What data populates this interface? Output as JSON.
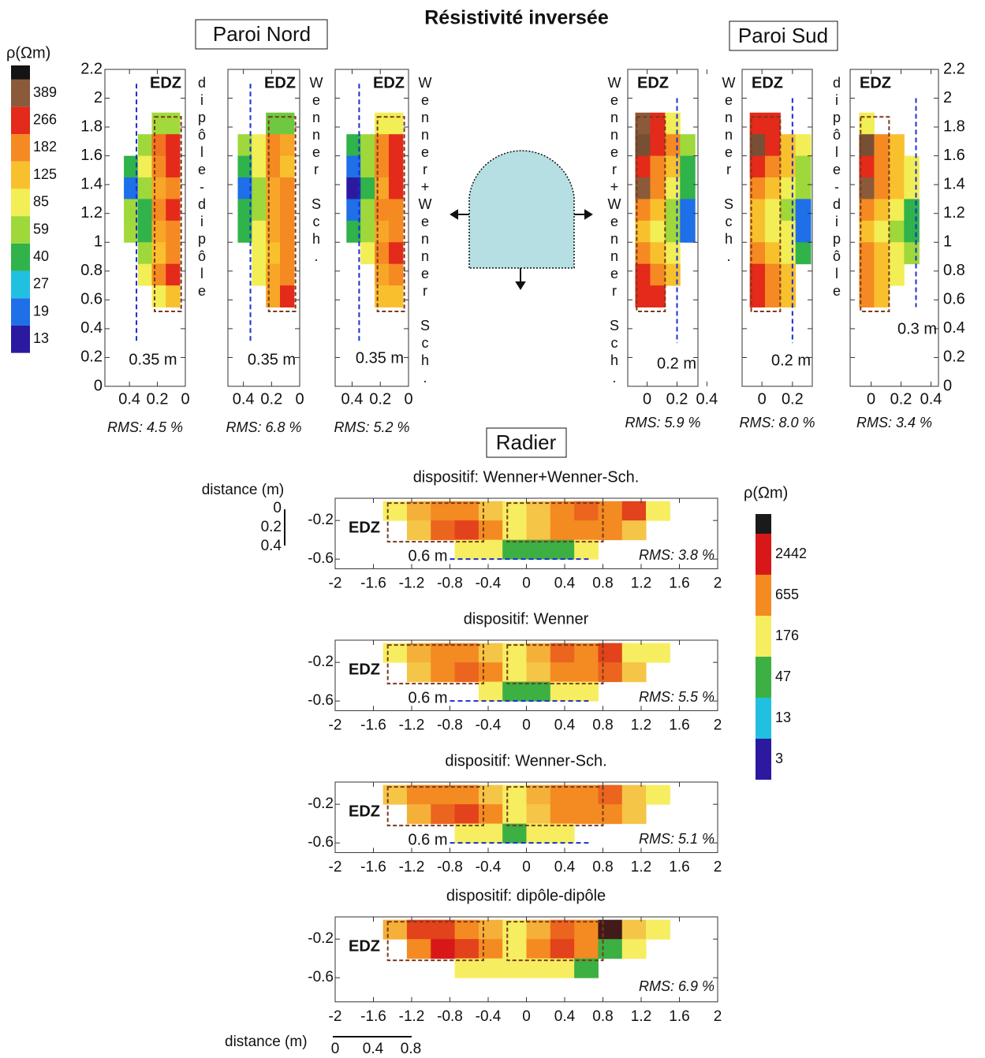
{
  "title": "Résistivité inversée",
  "paroi_nord": "Paroi Nord",
  "paroi_sud": "Paroi Sud",
  "radier": "Radier",
  "walls": {
    "colorbar": {
      "unit": "ρ(Ωm)",
      "ticks": [
        13,
        19,
        27,
        40,
        59,
        85,
        125,
        182,
        266,
        389
      ],
      "colors": [
        "#2b1aa0",
        "#1f6fe8",
        "#22c0e0",
        "#2fb34a",
        "#9ed83a",
        "#f2ee55",
        "#f9c02e",
        "#f58a22",
        "#e42a1a",
        "#8a5a3a"
      ],
      "top_color": "#141414"
    },
    "ylim": [
      0,
      2.2
    ],
    "yticks": [
      0,
      0.2,
      0.4,
      0.6,
      0.8,
      1,
      1.2,
      1.4,
      1.6,
      1.8,
      2,
      2.2
    ],
    "panels": [
      {
        "method": "dipôle-dipôle",
        "edz": "EDZ",
        "depth": {
          "value": 0.35,
          "label": "0.35 m"
        },
        "rms": "RMS: 4.5 %",
        "xlim": [
          0.576,
          0
        ],
        "xticks": [
          0.4,
          0.2,
          0
        ],
        "cells": [
          [
            null,
            null,
            60,
            60
          ],
          [
            null,
            59,
            200,
            266
          ],
          [
            40,
            85,
            182,
            266
          ],
          [
            19,
            59,
            150,
            182
          ],
          [
            59,
            40,
            182,
            266
          ],
          [
            60,
            40,
            150,
            182
          ],
          [
            null,
            59,
            125,
            182
          ],
          [
            null,
            85,
            182,
            266
          ],
          [
            null,
            null,
            85,
            125
          ]
        ]
      },
      {
        "method": "Wenner Sch.",
        "edz": "EDZ",
        "depth": {
          "value": 0.35,
          "label": "0.35 m"
        },
        "rms": "RMS: 6.8 %",
        "xlim": [
          0.51,
          0
        ],
        "xticks": [
          0.4,
          0.2,
          0
        ],
        "cells": [
          [
            null,
            null,
            50,
            50
          ],
          [
            59,
            85,
            182,
            150
          ],
          [
            40,
            85,
            182,
            125
          ],
          [
            19,
            59,
            150,
            182
          ],
          [
            40,
            59,
            150,
            182
          ],
          [
            40,
            85,
            150,
            182
          ],
          [
            null,
            85,
            125,
            182
          ],
          [
            null,
            85,
            150,
            182
          ],
          [
            null,
            null,
            150,
            266
          ]
        ]
      },
      {
        "method": "Wenner+Wenner Sch.",
        "edz": "EDZ",
        "depth": {
          "value": 0.35,
          "label": "0.35 m"
        },
        "rms": "RMS: 5.2 %",
        "xlim": [
          0.52,
          0
        ],
        "xticks": [
          0.4,
          0.2,
          0
        ],
        "cells": [
          [
            null,
            null,
            85,
            85
          ],
          [
            40,
            59,
            182,
            266
          ],
          [
            19,
            59,
            182,
            266
          ],
          [
            13,
            40,
            150,
            266
          ],
          [
            19,
            59,
            182,
            182
          ],
          [
            40,
            59,
            150,
            182
          ],
          [
            null,
            85,
            182,
            266
          ],
          [
            null,
            null,
            150,
            182
          ],
          [
            null,
            null,
            125,
            125
          ]
        ]
      },
      {
        "method": "Wenner+Wenner Sch.",
        "edz": "EDZ",
        "depth": {
          "value": 0.2,
          "label": "0.2 m"
        },
        "rms": "RMS: 5.9 %",
        "xlim": [
          -0.13,
          0.34
        ],
        "xticks": [
          0,
          0.2,
          0.4
        ],
        "cells": [
          [
            389,
            266,
            85,
            null
          ],
          [
            450,
            266,
            182,
            59
          ],
          [
            266,
            182,
            125,
            40
          ],
          [
            389,
            182,
            85,
            40
          ],
          [
            182,
            125,
            59,
            19
          ],
          [
            125,
            85,
            59,
            19
          ],
          [
            182,
            125,
            85,
            null
          ],
          [
            266,
            182,
            125,
            null
          ],
          [
            266,
            266,
            null,
            null
          ]
        ]
      },
      {
        "method": "Wenner Sch.",
        "edz": "EDZ",
        "depth": {
          "value": 0.2,
          "label": "0.2 m"
        },
        "rms": "RMS: 8.0 %",
        "xlim": [
          -0.13,
          0.33
        ],
        "xticks": [
          0,
          0.2
        ],
        "cells": [
          [
            266,
            266,
            null,
            null
          ],
          [
            450,
            266,
            125,
            85
          ],
          [
            266,
            182,
            125,
            59
          ],
          [
            182,
            125,
            85,
            59
          ],
          [
            125,
            85,
            59,
            19
          ],
          [
            125,
            85,
            85,
            19
          ],
          [
            182,
            125,
            85,
            40
          ],
          [
            266,
            182,
            125,
            null
          ],
          [
            266,
            182,
            125,
            null
          ]
        ]
      },
      {
        "method": "dipôle-dipôle",
        "edz": "EDZ",
        "depth": {
          "value": 0.3,
          "label": "0.3 m"
        },
        "rms": "RMS: 3.4 %",
        "xlim": [
          -0.14,
          0.45
        ],
        "xticks": [
          0,
          0.2,
          0.4
        ],
        "cells": [
          [
            85,
            null,
            null,
            null
          ],
          [
            450,
            182,
            125,
            null
          ],
          [
            266,
            182,
            125,
            85
          ],
          [
            389,
            182,
            125,
            85
          ],
          [
            182,
            125,
            85,
            40
          ],
          [
            125,
            85,
            59,
            40
          ],
          [
            182,
            125,
            85,
            59
          ],
          [
            182,
            125,
            85,
            null
          ],
          [
            182,
            125,
            null,
            null
          ]
        ]
      }
    ]
  },
  "floor": {
    "colorbar": {
      "unit": "ρ(Ωm)",
      "ticks": [
        3,
        13,
        47,
        176,
        655,
        2442
      ],
      "colors": [
        "#2b1aa0",
        "#22c0e0",
        "#3cb043",
        "#f6ee60",
        "#f48a22",
        "#d81818"
      ],
      "top_color": "#1a1a1a"
    },
    "xlim": [
      -2,
      2
    ],
    "xticks": [
      -2,
      -1.6,
      -1.2,
      -0.8,
      -0.4,
      0,
      0.4,
      0.8,
      1.2,
      1.6,
      2
    ],
    "yticks": [
      -0.2,
      -0.6
    ],
    "panels": [
      {
        "title": "dispositif: Wenner+Wenner-Sch.",
        "edz": "EDZ",
        "depth": {
          "value": 0.6,
          "label": "0.6 m"
        },
        "rms": "RMS: 3.8 %",
        "ylim": [
          -0.7,
          0.03
        ],
        "cells": [
          [
            176,
            400,
            655,
            655,
            300,
            176,
            300,
            655,
            1000,
            655,
            1500,
            176
          ],
          [
            null,
            300,
            1000,
            1500,
            655,
            176,
            300,
            655,
            655,
            655,
            300,
            null
          ],
          [
            null,
            null,
            null,
            176,
            176,
            47,
            47,
            47,
            176,
            null,
            null,
            null
          ]
        ]
      },
      {
        "title": "dispositif: Wenner",
        "edz": "EDZ",
        "depth": {
          "value": 0.6,
          "label": "0.6 m"
        },
        "rms": "RMS: 5.5 %",
        "ylim": [
          -0.7,
          0.03
        ],
        "cells": [
          [
            176,
            400,
            655,
            655,
            300,
            176,
            400,
            1000,
            655,
            1500,
            176,
            176
          ],
          [
            null,
            300,
            655,
            1000,
            655,
            176,
            300,
            655,
            655,
            1000,
            300,
            null
          ],
          [
            null,
            null,
            null,
            null,
            176,
            47,
            47,
            176,
            176,
            null,
            null,
            null
          ]
        ]
      },
      {
        "title": "dispositif: Wenner-Sch.",
        "edz": "EDZ",
        "depth": {
          "value": 0.6,
          "label": "0.6 m"
        },
        "rms": "RMS: 5.1 %",
        "ylim": [
          -0.7,
          0.03
        ],
        "cells": [
          [
            300,
            655,
            655,
            655,
            300,
            176,
            400,
            655,
            655,
            1000,
            300,
            176
          ],
          [
            null,
            400,
            1000,
            1500,
            655,
            176,
            300,
            655,
            655,
            655,
            300,
            null
          ],
          [
            null,
            null,
            null,
            176,
            176,
            47,
            176,
            176,
            null,
            null,
            null,
            null
          ]
        ]
      },
      {
        "title": "dispositif: dipôle-dipôle",
        "edz": "EDZ",
        "rms": "RMS: 6.9 %",
        "ylim": [
          -0.85,
          0.03
        ],
        "cells": [
          [
            400,
            1500,
            1500,
            655,
            400,
            176,
            400,
            1000,
            655,
            5000,
            300,
            176
          ],
          [
            null,
            655,
            2442,
            1500,
            655,
            176,
            655,
            1500,
            655,
            47,
            176,
            null
          ],
          [
            null,
            null,
            null,
            176,
            176,
            176,
            176,
            176,
            47,
            null,
            null,
            null
          ]
        ]
      }
    ]
  },
  "scale_vertical": {
    "label": "distance (m)",
    "ticks": [
      0,
      0.2,
      0.4
    ]
  },
  "scale_horizontal": {
    "label": "distance (m)",
    "ticks": [
      0,
      0.4,
      0.8
    ]
  }
}
